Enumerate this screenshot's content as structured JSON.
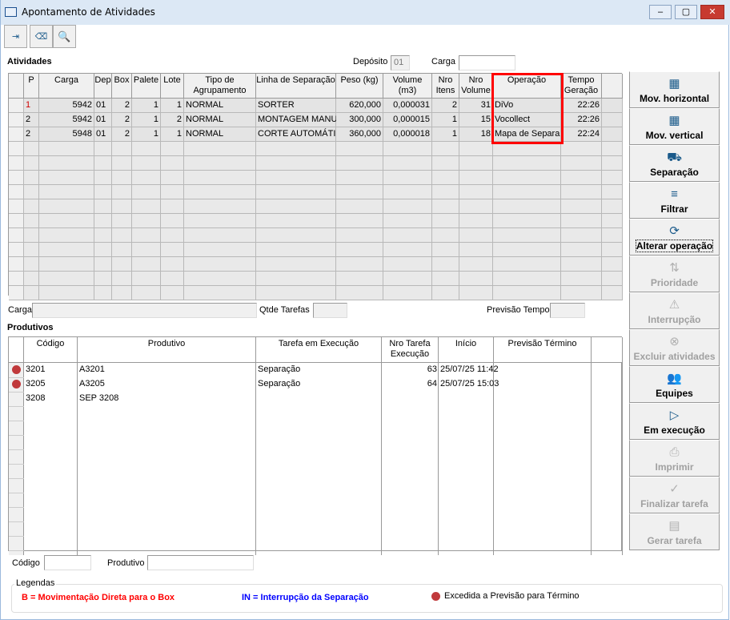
{
  "window": {
    "title": "Apontamento de Atividades",
    "controls": [
      "–",
      "▢",
      "✕"
    ]
  },
  "toolbar": [
    {
      "name": "exit-icon",
      "glyph": "⇥"
    },
    {
      "name": "eraser-icon",
      "glyph": "⌫"
    },
    {
      "name": "search-icon",
      "glyph": "🔍"
    }
  ],
  "atividades": {
    "title": "Atividades",
    "deposito_label": "Depósito",
    "deposito_value": "01",
    "carga_label": "Carga",
    "carga_value": "",
    "columns": [
      "",
      "P",
      "Carga",
      "Dep",
      "Box",
      "Palete",
      "Lote",
      "Tipo de Agrupamento",
      "Linha de Separação",
      "Peso (kg)",
      "Volume (m3)",
      "Nro Itens",
      "Nro Volume",
      "Operação",
      "Tempo Geração",
      ""
    ],
    "rows": [
      {
        "P": "1",
        "Carga": "5942",
        "Dep": "01",
        "Box": "2",
        "Palete": "1",
        "Lote": "1",
        "Tipo": "NORMAL",
        "Linha": "SORTER",
        "Peso": "620,000",
        "Volume": "0,000031",
        "Itens": "2",
        "NroVolume": "31",
        "Operacao": "DiVo",
        "Tempo": "22:26",
        "p_color": "#d00000"
      },
      {
        "P": "2",
        "Carga": "5942",
        "Dep": "01",
        "Box": "2",
        "Palete": "1",
        "Lote": "2",
        "Tipo": "NORMAL",
        "Linha": "MONTAGEM MANU",
        "Peso": "300,000",
        "Volume": "0,000015",
        "Itens": "1",
        "NroVolume": "15",
        "Operacao": "Vocollect",
        "Tempo": "22:26"
      },
      {
        "P": "2",
        "Carga": "5948",
        "Dep": "01",
        "Box": "2",
        "Palete": "1",
        "Lote": "1",
        "Tipo": "NORMAL",
        "Linha": "CORTE AUTOMÁTI",
        "Peso": "360,000",
        "Volume": "0,000018",
        "Itens": "1",
        "NroVolume": "18",
        "Operacao": "Mapa de Separa",
        "Tempo": "22:24"
      }
    ]
  },
  "summary": {
    "carga_label": "Carga",
    "carga_value": "",
    "qtde_label": "Qtde Tarefas",
    "qtde_value": "",
    "previsao_label": "Previsão Tempo",
    "previsao_value": ""
  },
  "produtivos": {
    "title": "Produtivos",
    "columns": [
      "",
      "Código",
      "Produtivo",
      "Tarefa em Execução",
      "Nro Tarefa Execução",
      "Início",
      "Previsão Término",
      ""
    ],
    "rows": [
      {
        "flag": true,
        "Codigo": "3201",
        "Produtivo": "A3201",
        "Tarefa": "Separação",
        "Nro": "63",
        "Inicio": "25/07/25  11:42",
        "Previsao": ""
      },
      {
        "flag": true,
        "Codigo": "3205",
        "Produtivo": "A3205",
        "Tarefa": "Separação",
        "Nro": "64",
        "Inicio": "25/07/25  15:03",
        "Previsao": ""
      },
      {
        "flag": false,
        "Codigo": "3208",
        "Produtivo": "SEP 3208",
        "Tarefa": "",
        "Nro": "",
        "Inicio": "",
        "Previsao": ""
      }
    ]
  },
  "filters": {
    "codigo_label": "Código",
    "codigo_value": "",
    "produtivo_label": "Produtivo",
    "produtivo_value": ""
  },
  "legend": {
    "title": "Legendas",
    "b": "B = Movimentação Direta para o Box",
    "b_color": "#ff0000",
    "in": "IN = Interrupção da Separação",
    "in_color": "#0000ff",
    "dot": "Excedida a Previsão para Término",
    "dot_color": "#c0393b"
  },
  "actions": [
    {
      "label": "Mov. horizontal",
      "icon": "pallets-icon",
      "glyph": "▦",
      "enabled": true
    },
    {
      "label": "Mov. vertical",
      "icon": "pallets-icon",
      "glyph": "▦",
      "enabled": true
    },
    {
      "label": "Separação",
      "icon": "hand-truck-icon",
      "glyph": "⛟",
      "enabled": true
    },
    {
      "label": "Filtrar",
      "icon": "filter-icon",
      "glyph": "≡",
      "enabled": true
    },
    {
      "label": "Alterar operação",
      "icon": "refresh-icon",
      "glyph": "⟳",
      "enabled": true,
      "focus": true
    },
    {
      "label": "Prioridade",
      "icon": "sort-arrows-icon",
      "glyph": "⇅",
      "enabled": false
    },
    {
      "label": "Interrupção",
      "icon": "warning-icon",
      "glyph": "⚠",
      "enabled": false
    },
    {
      "label": "Excluir atividades",
      "icon": "delete-circle-icon",
      "glyph": "⊗",
      "enabled": false
    },
    {
      "label": "Equipes",
      "icon": "team-icon",
      "glyph": "👥",
      "enabled": true
    },
    {
      "label": "Em execução",
      "icon": "play-icon",
      "glyph": "▷",
      "enabled": true
    },
    {
      "label": "Imprimir",
      "icon": "printer-icon",
      "glyph": "⎙",
      "enabled": false
    },
    {
      "label": "Finalizar tarefa",
      "icon": "check-circle-icon",
      "glyph": "✓",
      "enabled": false
    },
    {
      "label": "Gerar tarefa",
      "icon": "document-icon",
      "glyph": "▤",
      "enabled": false
    }
  ]
}
